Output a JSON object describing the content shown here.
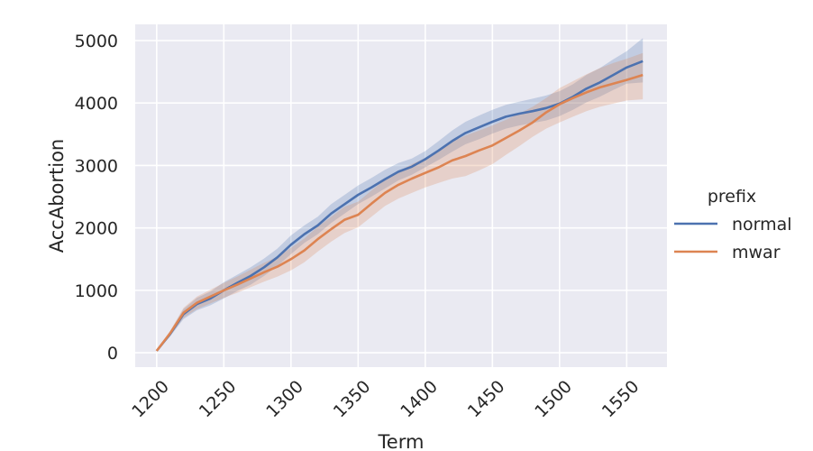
{
  "chart_data": {
    "type": "line",
    "title": "",
    "xlabel": "Term",
    "ylabel": "AccAbortion",
    "xlim": [
      1184,
      1580
    ],
    "ylim": [
      -230,
      5260
    ],
    "xticks": [
      1200,
      1250,
      1300,
      1350,
      1400,
      1450,
      1500,
      1550
    ],
    "yticks": [
      0,
      1000,
      2000,
      3000,
      4000,
      5000
    ],
    "grid": true,
    "background": "#EAEAF2",
    "legend": {
      "title": "prefix",
      "position": "right"
    },
    "series": [
      {
        "name": "normal",
        "color": "#4C72B0",
        "x": [
          1200,
          1210,
          1220,
          1230,
          1240,
          1250,
          1260,
          1270,
          1280,
          1290,
          1300,
          1310,
          1320,
          1330,
          1340,
          1350,
          1360,
          1370,
          1380,
          1390,
          1400,
          1410,
          1420,
          1430,
          1440,
          1450,
          1460,
          1470,
          1480,
          1490,
          1500,
          1510,
          1520,
          1530,
          1540,
          1550,
          1562
        ],
        "y": [
          30,
          300,
          620,
          780,
          870,
          1000,
          1120,
          1230,
          1370,
          1530,
          1730,
          1900,
          2040,
          2230,
          2380,
          2530,
          2650,
          2780,
          2900,
          2980,
          3100,
          3240,
          3390,
          3520,
          3610,
          3700,
          3780,
          3830,
          3870,
          3920,
          3990,
          4100,
          4230,
          4330,
          4450,
          4570,
          4670
        ],
        "lower": [
          20,
          260,
          540,
          680,
          760,
          870,
          990,
          1090,
          1230,
          1390,
          1580,
          1760,
          1900,
          2080,
          2230,
          2380,
          2500,
          2630,
          2760,
          2850,
          2970,
          3090,
          3220,
          3340,
          3420,
          3510,
          3590,
          3640,
          3680,
          3720,
          3790,
          3890,
          4010,
          4100,
          4210,
          4310,
          4330
        ],
        "upper": [
          40,
          340,
          700,
          880,
          980,
          1130,
          1250,
          1370,
          1510,
          1670,
          1880,
          2040,
          2180,
          2380,
          2530,
          2680,
          2800,
          2930,
          3040,
          3110,
          3230,
          3390,
          3560,
          3700,
          3800,
          3890,
          3970,
          4020,
          4070,
          4120,
          4190,
          4300,
          4450,
          4560,
          4700,
          4830,
          5040
        ]
      },
      {
        "name": "mwar",
        "color": "#DD8452",
        "x": [
          1200,
          1210,
          1220,
          1230,
          1240,
          1250,
          1260,
          1270,
          1280,
          1290,
          1300,
          1310,
          1320,
          1330,
          1340,
          1350,
          1360,
          1370,
          1380,
          1390,
          1400,
          1410,
          1420,
          1430,
          1440,
          1450,
          1460,
          1470,
          1480,
          1490,
          1500,
          1510,
          1520,
          1530,
          1540,
          1550,
          1562
        ],
        "y": [
          30,
          310,
          640,
          800,
          900,
          1000,
          1090,
          1190,
          1290,
          1380,
          1500,
          1640,
          1820,
          1980,
          2130,
          2210,
          2390,
          2560,
          2690,
          2790,
          2880,
          2970,
          3080,
          3150,
          3240,
          3320,
          3440,
          3560,
          3690,
          3850,
          3980,
          4080,
          4170,
          4250,
          4310,
          4370,
          4450
        ],
        "lower": [
          20,
          270,
          560,
          700,
          790,
          880,
          960,
          1050,
          1140,
          1220,
          1320,
          1450,
          1620,
          1780,
          1920,
          2010,
          2180,
          2350,
          2470,
          2560,
          2650,
          2720,
          2790,
          2830,
          2920,
          3020,
          3170,
          3310,
          3460,
          3590,
          3690,
          3780,
          3870,
          3940,
          3990,
          4040,
          4060
        ],
        "upper": [
          40,
          350,
          720,
          900,
          1010,
          1120,
          1220,
          1330,
          1440,
          1540,
          1680,
          1830,
          2020,
          2180,
          2340,
          2420,
          2600,
          2770,
          2910,
          3020,
          3120,
          3240,
          3380,
          3480,
          3560,
          3640,
          3730,
          3830,
          3940,
          4080,
          4240,
          4350,
          4460,
          4560,
          4640,
          4710,
          4800
        ]
      }
    ]
  }
}
